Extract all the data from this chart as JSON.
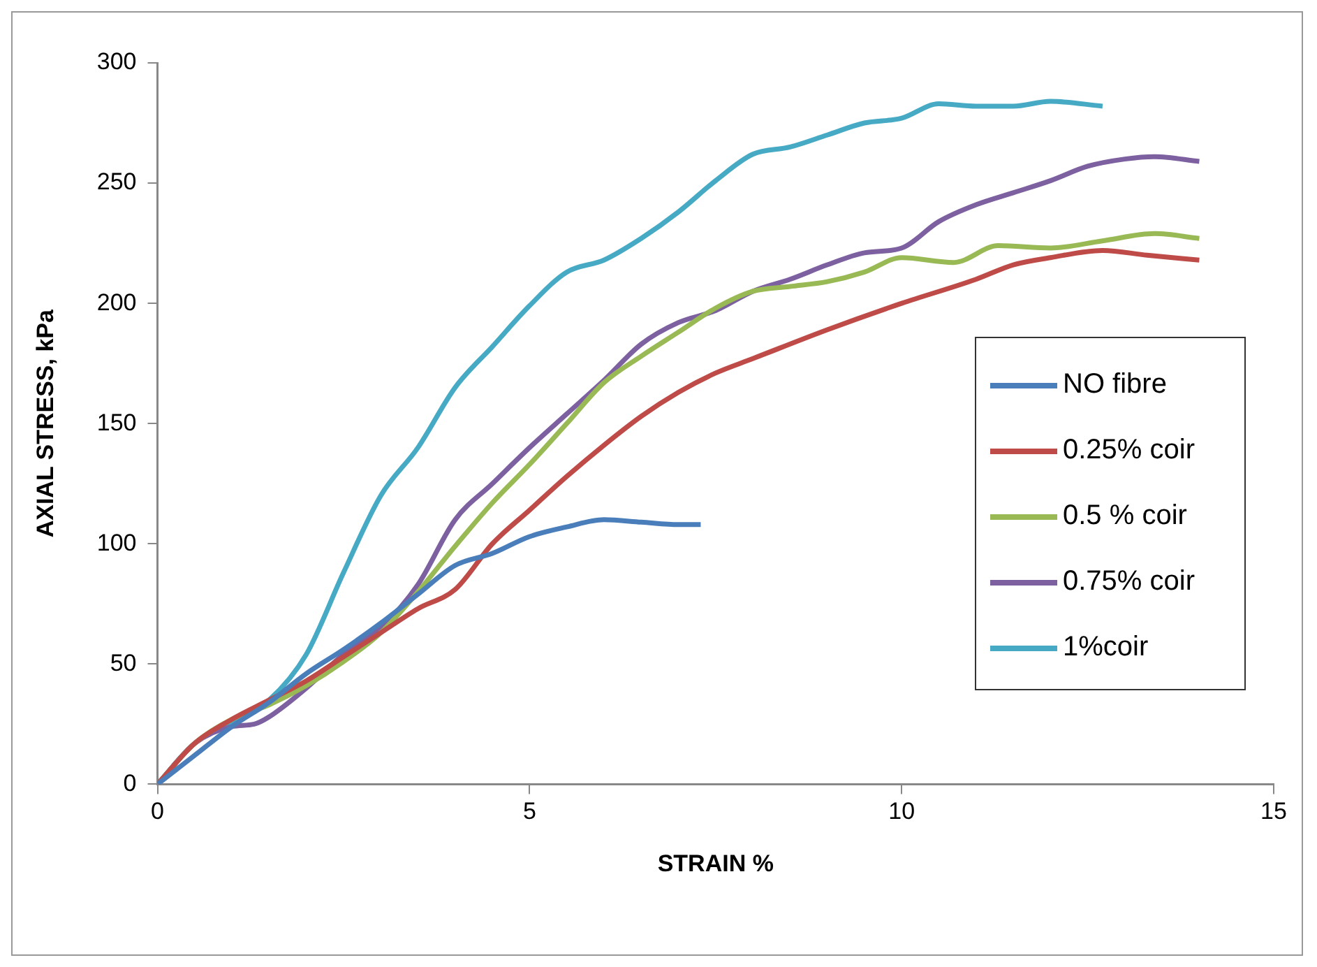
{
  "chart_data": {
    "type": "line",
    "xlabel": "STRAIN %",
    "ylabel": "AXIAL STRESS, kPa",
    "xlim": [
      0,
      15
    ],
    "xticks": [
      0,
      5,
      10,
      15
    ],
    "ylim": [
      0,
      300
    ],
    "yticks": [
      0,
      50,
      100,
      150,
      200,
      250,
      300
    ],
    "grid": false,
    "legend": "right",
    "marker": "none",
    "line_style": "solid",
    "series": [
      {
        "name": "NO fibre",
        "color": "#4a7ebb",
        "x": [
          0,
          0.5,
          1,
          1.5,
          2,
          2.5,
          3,
          3.5,
          4,
          4.5,
          5,
          5.5,
          6,
          6.5,
          7,
          7.3
        ],
        "values": [
          0,
          12,
          24,
          34,
          46,
          56,
          67,
          79,
          91,
          96,
          103,
          107,
          110,
          109,
          108,
          108
        ]
      },
      {
        "name": "0.25% coir",
        "color": "#be4b48",
        "x": [
          0,
          0.5,
          1,
          1.5,
          2,
          2.5,
          3,
          3.5,
          4,
          4.5,
          5,
          5.5,
          6,
          6.5,
          7,
          7.5,
          8,
          9,
          10,
          11,
          11.5,
          12,
          12.7,
          13.3,
          14
        ],
        "values": [
          0,
          17,
          27,
          35,
          43,
          53,
          63,
          73,
          81,
          100,
          114,
          128,
          141,
          153,
          163,
          171,
          177,
          189,
          200,
          210,
          216,
          219,
          222,
          220,
          218
        ]
      },
      {
        "name": "0.5 % coir",
        "color": "#98b954",
        "x": [
          0,
          0.5,
          1,
          1.5,
          2,
          2.5,
          3,
          3.5,
          4,
          4.5,
          5,
          5.5,
          6,
          6.5,
          7,
          7.5,
          8,
          8.5,
          9,
          9.5,
          10,
          10.7,
          11.3,
          12,
          12.7,
          13.4,
          14
        ],
        "values": [
          0,
          17,
          27,
          33,
          41,
          51,
          63,
          80,
          99,
          117,
          133,
          150,
          167,
          178,
          188,
          198,
          205,
          207,
          209,
          213,
          219,
          217,
          224,
          223,
          226,
          229,
          227
        ]
      },
      {
        "name": "0.75% coir",
        "color": "#7d60a0",
        "x": [
          0,
          0.5,
          1,
          1.3,
          1.5,
          2,
          2.5,
          3,
          3.5,
          4,
          4.5,
          5,
          5.5,
          6,
          6.5,
          7,
          7.5,
          8,
          8.5,
          9,
          9.5,
          10,
          10.5,
          11,
          11.5,
          12,
          12.5,
          13,
          13.4,
          14
        ],
        "values": [
          0,
          17,
          24,
          25,
          28,
          40,
          54,
          65,
          83,
          110,
          125,
          140,
          154,
          168,
          183,
          192,
          197,
          205,
          210,
          216,
          221,
          223,
          234,
          241,
          246,
          251,
          257,
          260,
          261,
          259
        ]
      },
      {
        "name": "1%coir",
        "color": "#46aac5",
        "x": [
          0,
          0.5,
          1,
          1.5,
          2,
          2.5,
          3,
          3.5,
          4,
          4.5,
          5,
          5.5,
          6,
          6.5,
          7,
          7.5,
          8,
          8.5,
          9,
          9.5,
          10,
          10.5,
          11,
          11.5,
          12,
          12.7
        ],
        "values": [
          0,
          17,
          26,
          35,
          54,
          88,
          120,
          140,
          165,
          182,
          199,
          213,
          218,
          227,
          238,
          251,
          262,
          265,
          270,
          275,
          277,
          283,
          282,
          282,
          284,
          282
        ]
      }
    ]
  }
}
